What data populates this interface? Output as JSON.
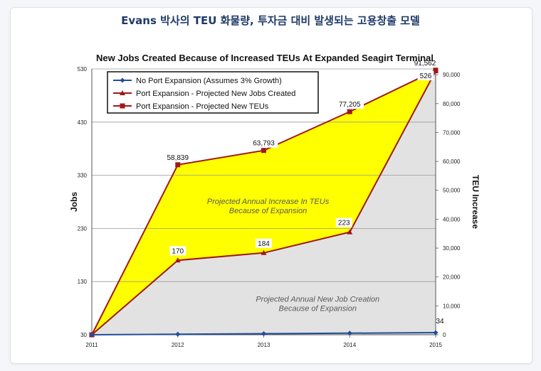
{
  "header": {
    "title": "Evans 박사의 TEU 화물량, 투자금 대비 발생되는 고용창출 모델"
  },
  "chart_data": {
    "type": "area",
    "title": "New Jobs Created Because of Increased TEUs At Expanded Seagirt Terminal",
    "xlabel": "",
    "ylabel": "Jobs",
    "y2label": "TEU Increase",
    "x": [
      "2011",
      "2012",
      "2013",
      "2014",
      "2015"
    ],
    "ylim": [
      30,
      530
    ],
    "y_ticks": [
      "30",
      "130",
      "230",
      "330",
      "430",
      "530"
    ],
    "y2lim": [
      0,
      92000
    ],
    "y2_ticks": [
      "0",
      "10,000",
      "20,000",
      "30,000",
      "40,000",
      "50,000",
      "60,000",
      "70,000",
      "80,000",
      "90,000"
    ],
    "legend_position": "top-left",
    "series": [
      {
        "name": "No Port Expansion (Assumes 3% Growth)",
        "axis": "left",
        "color": "#1f4e9a",
        "marker": "diamond",
        "values": [
          30,
          31,
          32,
          33,
          34
        ],
        "labels": [
          "",
          "",
          "",
          "",
          "34"
        ]
      },
      {
        "name": "Port Expansion - Projected New Jobs Created",
        "axis": "left",
        "color": "#a01818",
        "marker": "triangle",
        "fill": "#e2e2e2",
        "values": [
          30,
          170,
          184,
          223,
          526
        ],
        "labels": [
          "",
          "170",
          "184",
          "223",
          "526"
        ]
      },
      {
        "name": "Port Expansion - Projected New TEUs",
        "axis": "right",
        "color": "#a01818",
        "marker": "square",
        "fill": "#ffff00",
        "values": [
          0,
          58839,
          63793,
          77205,
          91562
        ],
        "labels": [
          "",
          "58,839",
          "63,793",
          "77,205",
          "91,562"
        ]
      }
    ],
    "annotations": [
      {
        "text": "Projected Annual Increase In TEUs",
        "text2": "Because of Expansion"
      },
      {
        "text": "Projected Annual New Job Creation",
        "text2": "Because of Expansion"
      }
    ]
  }
}
